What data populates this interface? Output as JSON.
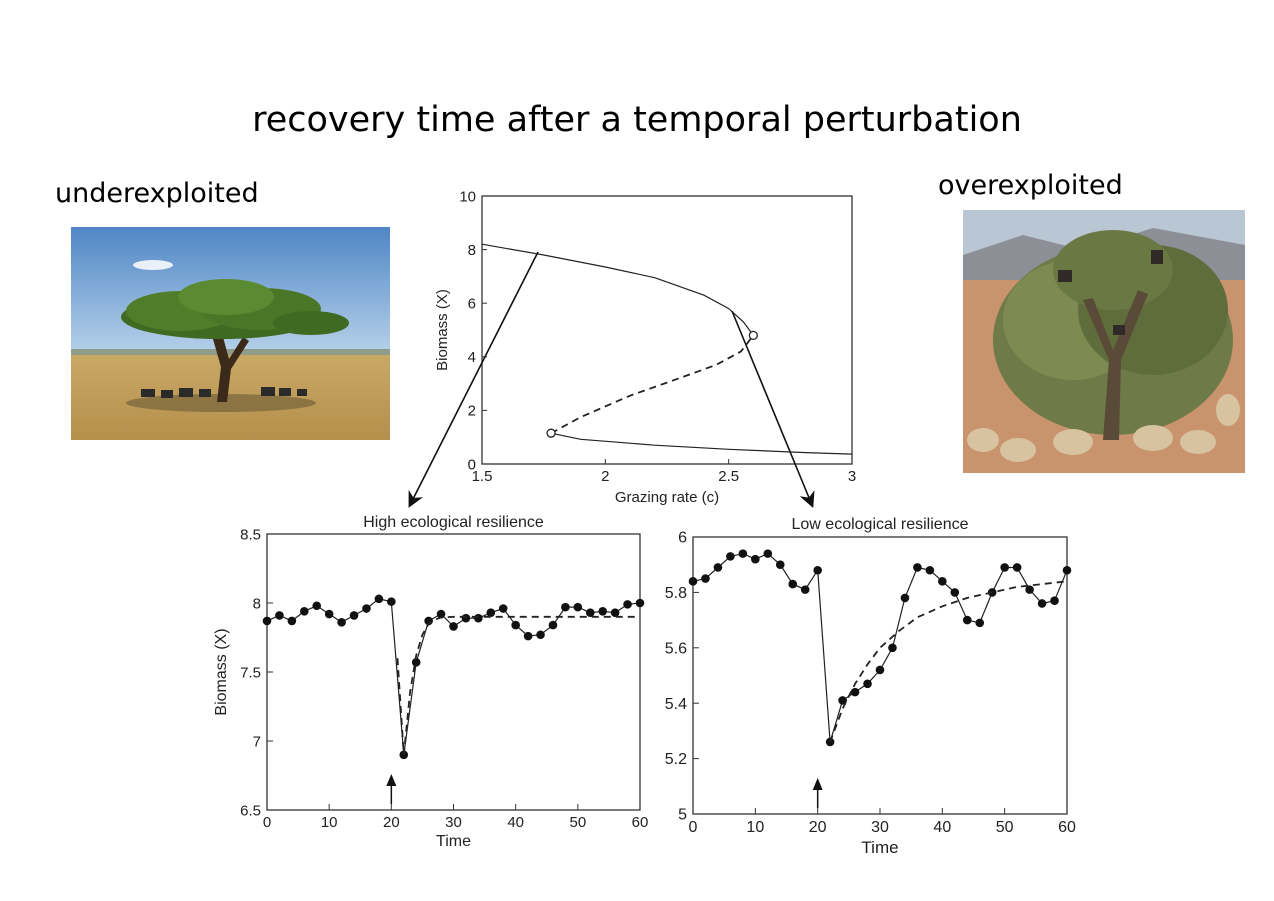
{
  "slide": {
    "title": "recovery time after a temporal perturbation",
    "left_label": "underexploited",
    "right_label": "overexploited",
    "left_photo_icon": "acacia-savanna-photo",
    "right_photo_icon": "goats-in-tree-photo"
  },
  "chart_data": [
    {
      "type": "line",
      "title": "",
      "xlabel": "Grazing rate (c)",
      "ylabel": "Biomass (X)",
      "xlim": [
        1.5,
        3
      ],
      "ylim": [
        0,
        10
      ],
      "xticks": [
        "1.5",
        "2",
        "2.5",
        "3"
      ],
      "yticks": [
        "0",
        "2",
        "4",
        "6",
        "8",
        "10"
      ],
      "series": [
        {
          "style": "solid",
          "x": [
            1.5,
            1.75,
            2.0,
            2.2,
            2.4,
            2.5,
            2.56,
            2.6
          ],
          "y": [
            8.2,
            7.8,
            7.35,
            6.95,
            6.3,
            5.8,
            5.3,
            4.8
          ]
        },
        {
          "style": "dashed",
          "x": [
            1.78,
            1.9,
            2.1,
            2.3,
            2.45,
            2.55,
            2.6
          ],
          "y": [
            1.15,
            1.75,
            2.55,
            3.2,
            3.7,
            4.2,
            4.8
          ]
        },
        {
          "style": "solid",
          "x": [
            1.78,
            1.9,
            2.2,
            2.5,
            2.8,
            3.0
          ],
          "y": [
            1.15,
            0.92,
            0.7,
            0.55,
            0.43,
            0.37
          ]
        }
      ],
      "bifurcation_points": [
        {
          "x": 2.6,
          "y": 4.8
        },
        {
          "x": 1.78,
          "y": 1.15
        }
      ]
    },
    {
      "type": "line",
      "title": "High ecological resilience",
      "xlabel": "Time",
      "ylabel": "Biomass (X)",
      "xlim": [
        0,
        60
      ],
      "ylim": [
        6.5,
        8.5
      ],
      "xticks": [
        "0",
        "10",
        "20",
        "30",
        "40",
        "50",
        "60"
      ],
      "yticks": [
        "6.5",
        "7",
        "7.5",
        "8",
        "8.5"
      ],
      "perturbation_time": 20,
      "series": [
        {
          "style": "solid-markers",
          "x": [
            0,
            2,
            4,
            6,
            8,
            10,
            12,
            14,
            16,
            18,
            20,
            22,
            24,
            26,
            28,
            30,
            32,
            34,
            36,
            38,
            40,
            42,
            44,
            46,
            48,
            50,
            52,
            54,
            56,
            58,
            60
          ],
          "y": [
            7.87,
            7.91,
            7.87,
            7.94,
            7.98,
            7.92,
            7.86,
            7.91,
            7.96,
            8.03,
            8.01,
            6.9,
            7.57,
            7.87,
            7.92,
            7.83,
            7.89,
            7.89,
            7.93,
            7.96,
            7.84,
            7.76,
            7.77,
            7.84,
            7.97,
            7.97,
            7.93,
            7.94,
            7.93,
            7.99,
            8.0
          ]
        },
        {
          "style": "dashed",
          "x": [
            21,
            22,
            23,
            24,
            25,
            26,
            27,
            28,
            30,
            35,
            40,
            50,
            60
          ],
          "y": [
            7.6,
            6.9,
            7.35,
            7.62,
            7.77,
            7.85,
            7.88,
            7.895,
            7.9,
            7.9,
            7.9,
            7.9,
            7.9
          ]
        }
      ]
    },
    {
      "type": "line",
      "title": "Low ecological resilience",
      "xlabel": "Time",
      "ylabel": "",
      "xlim": [
        0,
        60
      ],
      "ylim": [
        5,
        6
      ],
      "xticks": [
        "0",
        "10",
        "20",
        "30",
        "40",
        "50",
        "60"
      ],
      "yticks": [
        "5",
        "5.2",
        "5.4",
        "5.6",
        "5.8",
        "6"
      ],
      "perturbation_time": 20,
      "series": [
        {
          "style": "solid-markers",
          "x": [
            0,
            2,
            4,
            6,
            8,
            10,
            12,
            14,
            16,
            18,
            20,
            22,
            24,
            26,
            28,
            30,
            32,
            34,
            36,
            38,
            40,
            42,
            44,
            46,
            48,
            50,
            52,
            54,
            56,
            58,
            60
          ],
          "y": [
            5.84,
            5.85,
            5.89,
            5.93,
            5.94,
            5.92,
            5.94,
            5.9,
            5.83,
            5.81,
            5.88,
            5.26,
            5.41,
            5.44,
            5.47,
            5.52,
            5.6,
            5.78,
            5.89,
            5.88,
            5.84,
            5.8,
            5.7,
            5.69,
            5.8,
            5.89,
            5.89,
            5.81,
            5.76,
            5.77,
            5.88
          ]
        },
        {
          "style": "dashed",
          "x": [
            22,
            24,
            26,
            28,
            30,
            33,
            36,
            40,
            44,
            48,
            52,
            56,
            60
          ],
          "y": [
            5.26,
            5.38,
            5.47,
            5.54,
            5.6,
            5.66,
            5.71,
            5.75,
            5.78,
            5.8,
            5.82,
            5.83,
            5.84
          ]
        }
      ]
    }
  ]
}
